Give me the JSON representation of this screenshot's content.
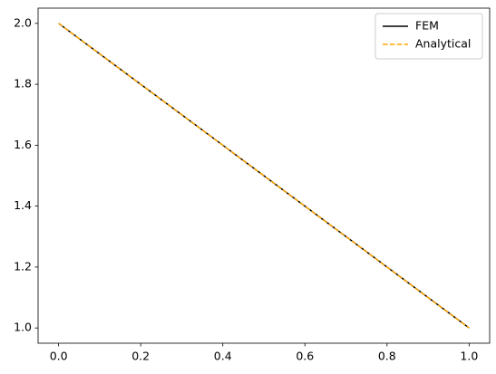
{
  "chart_data": {
    "type": "line",
    "x": [
      0,
      1
    ],
    "series": [
      {
        "name": "FEM",
        "color": "#000000",
        "dash": "solid",
        "values": [
          2,
          1
        ]
      },
      {
        "name": "Analytical",
        "color": "#ffa500",
        "dash": "dashed",
        "values": [
          2,
          1
        ]
      }
    ],
    "xlim": [
      -0.05,
      1.05
    ],
    "xticks": [
      {
        "value": 0,
        "label": "0.0"
      },
      0.2,
      0.4,
      0.6,
      0.8,
      {
        "value": 1,
        "label": "1.0"
      }
    ],
    "ylim": [
      0.95,
      2.05
    ],
    "yticks": [
      {
        "value": 1,
        "label": "1.0"
      },
      1.2,
      1.4,
      1.6,
      1.8,
      {
        "value": 2,
        "label": "2.0"
      }
    ],
    "grid": false,
    "legend": "upper right"
  }
}
